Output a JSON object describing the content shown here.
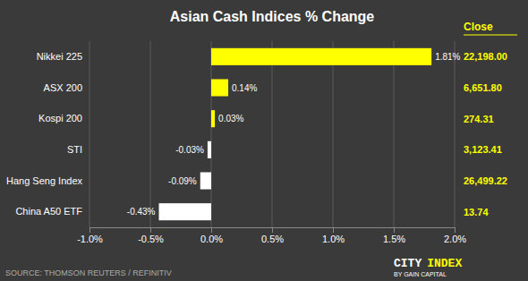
{
  "chart_data": {
    "type": "bar",
    "orientation": "horizontal",
    "title": "Asian Cash Indices % Change",
    "categories": [
      "China A50 ETF",
      "Hang Seng Index",
      "STI",
      "Kospi 200",
      "ASX 200",
      "Nikkei 225"
    ],
    "values": [
      -0.43,
      -0.09,
      -0.03,
      0.03,
      0.14,
      1.81
    ],
    "value_labels": [
      "-0.43%",
      "-0.09%",
      "-0.03%",
      "0.03%",
      "0.14%",
      "1.81%"
    ],
    "data_labels": true,
    "colors": [
      "#ffffff",
      "#ffffff",
      "#ffffff",
      "#ffff00",
      "#ffff00",
      "#ffff00"
    ],
    "xlim": [
      -1.0,
      2.0
    ],
    "xticks": [
      {
        "value": -1.0,
        "label": "-1.0%"
      },
      {
        "value": -0.5,
        "label": "-0.5%"
      },
      {
        "value": 0.0,
        "label": "0.0%"
      },
      {
        "value": 0.5,
        "label": "0.5%"
      },
      {
        "value": 1.0,
        "label": "1.0%"
      },
      {
        "value": 1.5,
        "label": "1.5%"
      },
      {
        "value": 2.0,
        "label": "2.0%"
      }
    ],
    "grid": true,
    "annotations": [
      {
        "text": "Close"
      },
      {
        "text": "13.74",
        "category": "China A50 ETF"
      },
      {
        "text": "26,499.22",
        "category": "Hang Seng Index"
      },
      {
        "text": "3,123.41",
        "category": "STI"
      },
      {
        "text": "274.31",
        "category": "Kospi 200"
      },
      {
        "text": "6,651.80",
        "category": "ASX 200"
      },
      {
        "text": "22,198.00",
        "category": "Nikkei 225"
      },
      {
        "text": "SOURCE: THOMSON REUTERS / REFINITIV"
      },
      {
        "text": "CITY"
      },
      {
        "text": "INDEX"
      },
      {
        "text": "BY GAIN CAPITAL"
      }
    ]
  }
}
